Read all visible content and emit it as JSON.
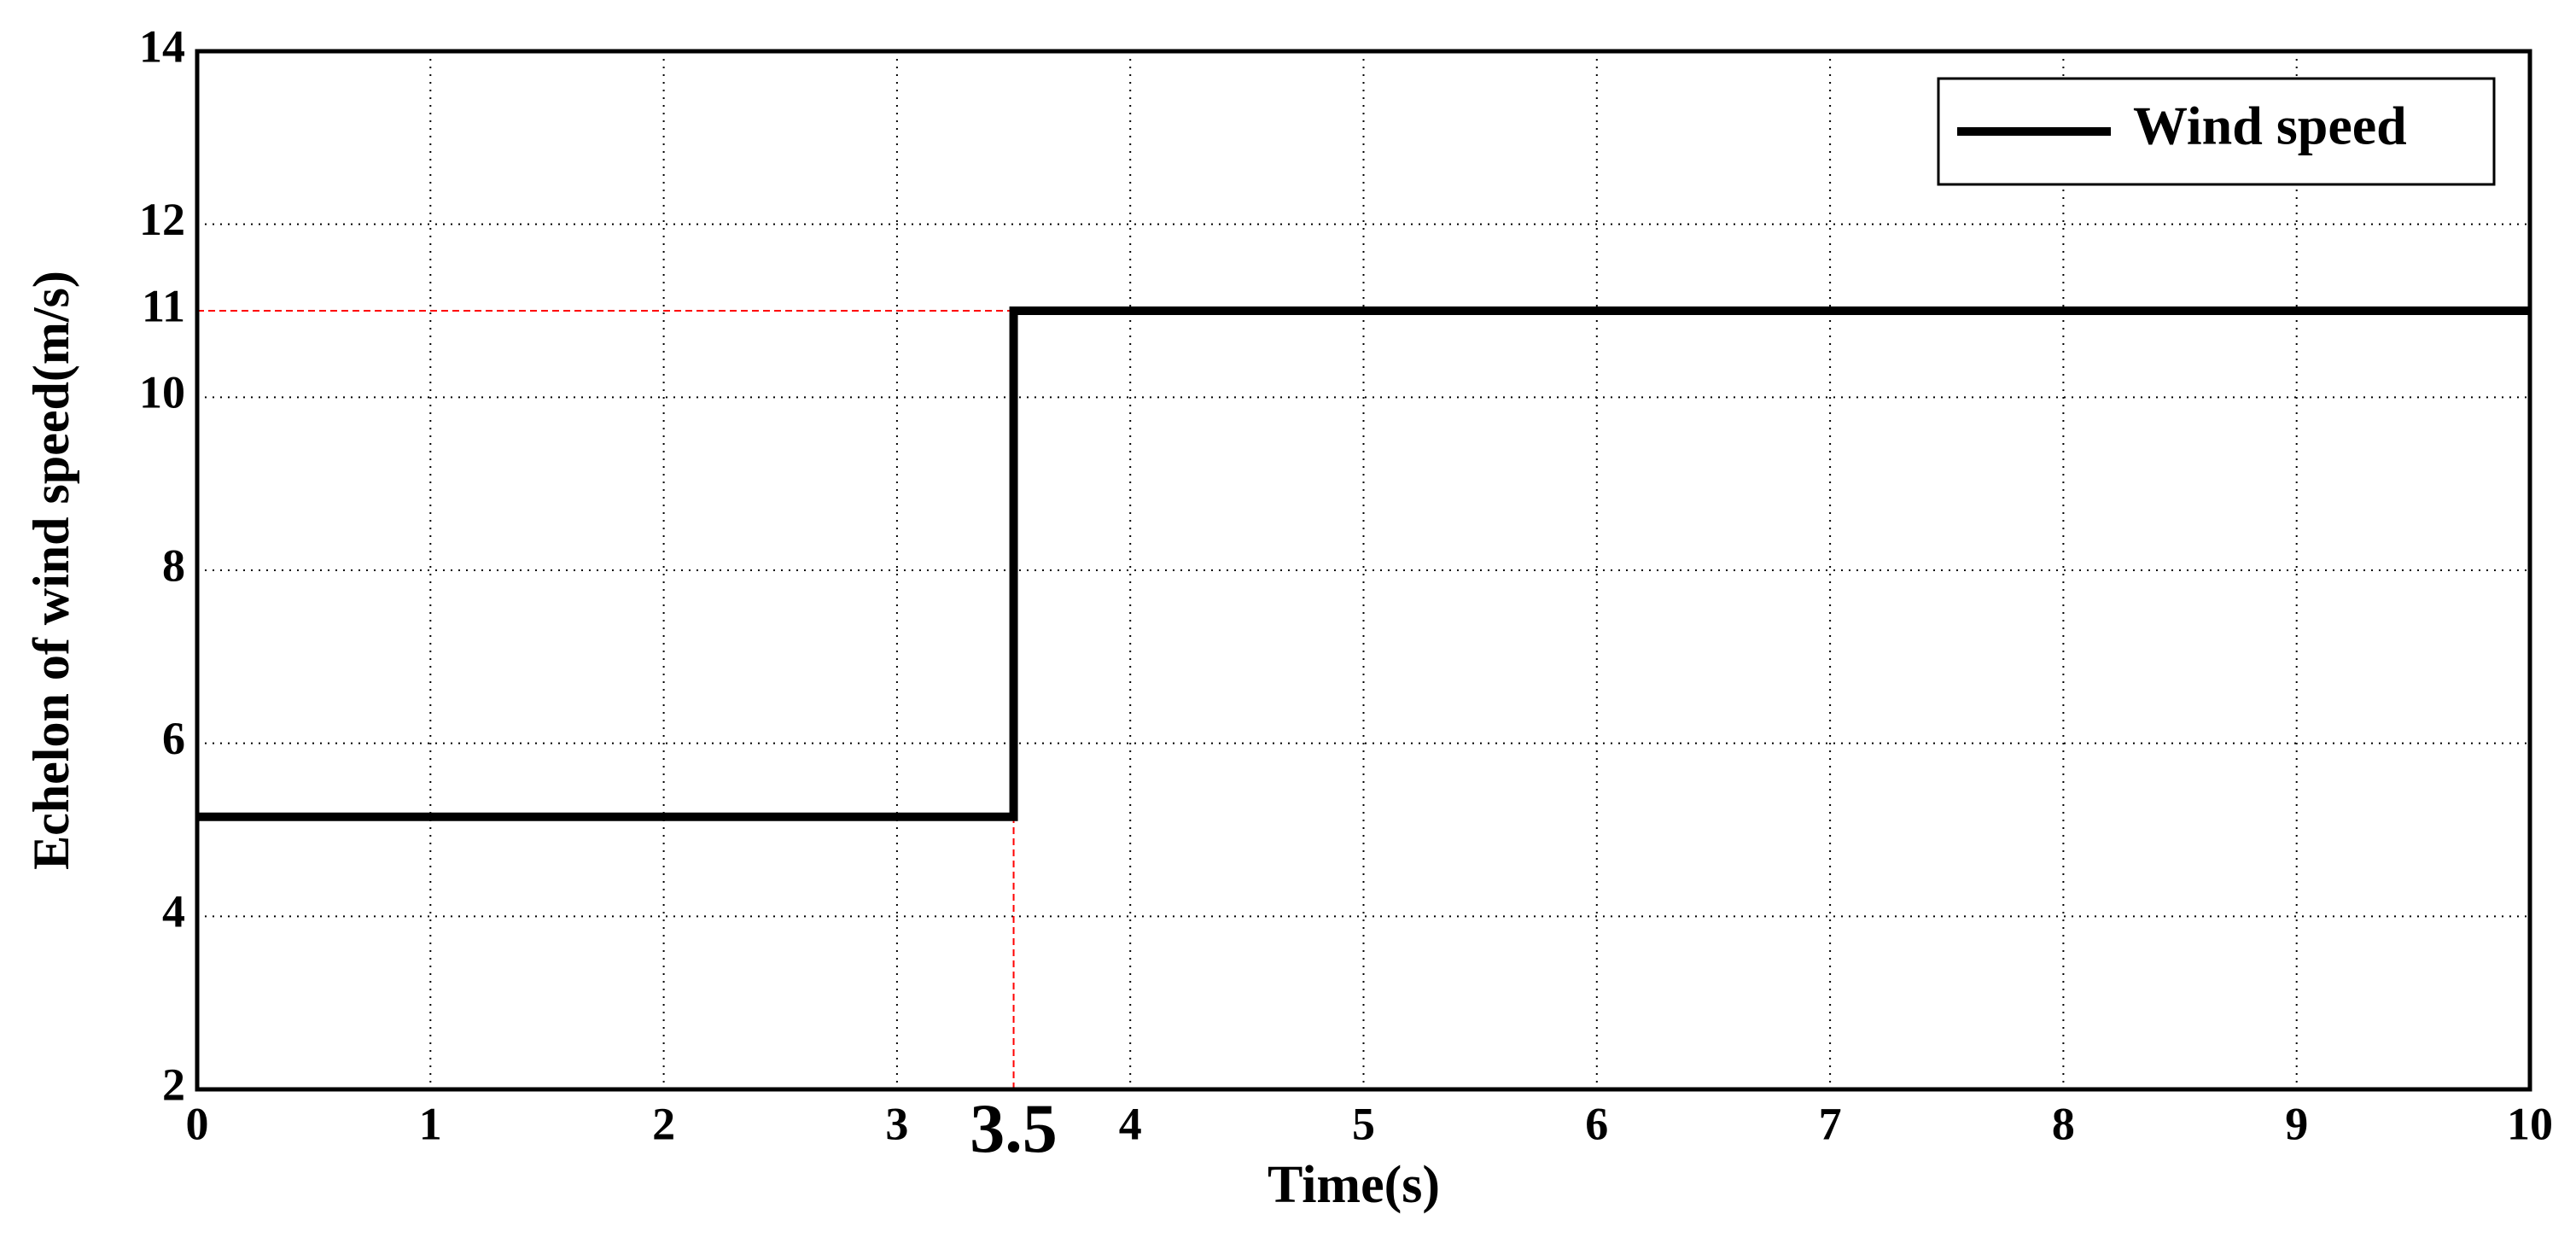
{
  "chart_data": {
    "type": "line",
    "x_label": "Time(s)",
    "y_label": "Echelon of wind speed(m/s)",
    "x": [
      0,
      3.5,
      3.5,
      10
    ],
    "series": [
      {
        "name": "Wind speed",
        "color": "#000000",
        "values": [
          5.15,
          5.15,
          11,
          11
        ]
      }
    ],
    "xlim": [
      0,
      10
    ],
    "xticks": [
      0,
      1,
      2,
      3,
      3.5,
      4,
      5,
      6,
      7,
      8,
      9,
      10
    ],
    "ylim": [
      2,
      14
    ],
    "yticks": [
      2,
      4,
      6,
      8,
      10,
      11,
      12,
      14
    ],
    "grid": true,
    "legend": "upper right",
    "guides": {
      "x": 3.5,
      "y": 11,
      "color": "#ff0000"
    }
  }
}
